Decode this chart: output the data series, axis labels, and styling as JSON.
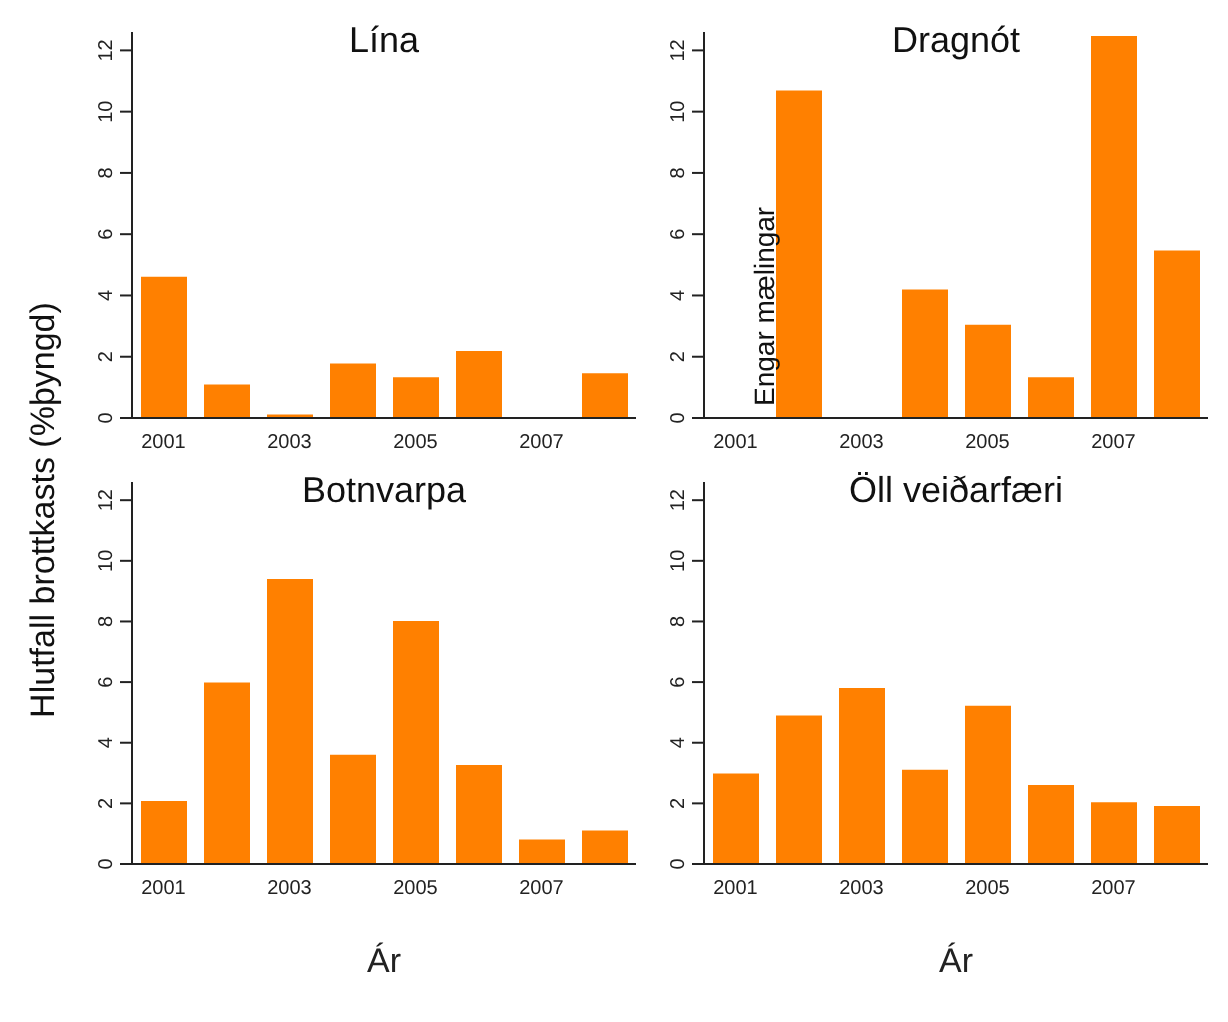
{
  "chart_data": [
    {
      "type": "bar",
      "title": "Lína",
      "ylabel": "Hlutfall brottkasts (%þyngd)",
      "categories": [
        "2001",
        null,
        "2003",
        null,
        "2005",
        null,
        "2007",
        null
      ],
      "values": [
        4.64,
        1.13,
        0.15,
        1.81,
        1.36,
        2.22,
        null,
        1.49
      ],
      "color": "#ff8000",
      "ylim": [
        0,
        12.6
      ],
      "yticks": [
        0,
        2,
        4,
        6,
        8,
        10,
        12
      ],
      "grid": false,
      "legend": false
    },
    {
      "type": "bar",
      "title": "Dragnót",
      "categories": [
        "2001",
        null,
        "2003",
        null,
        "2005",
        null,
        "2007",
        null
      ],
      "values": [
        null,
        10.72,
        null,
        4.23,
        3.08,
        1.36,
        12.5,
        5.5
      ],
      "color": "#ff8000",
      "ylim": [
        0,
        12.6
      ],
      "yticks": [
        0,
        2,
        4,
        6,
        8,
        10,
        12
      ],
      "grid": false,
      "legend": false,
      "annotations": [
        "Engar mælingar"
      ]
    },
    {
      "type": "bar",
      "title": "Botnvarpa",
      "xlabel": "Ár",
      "categories": [
        "2001",
        null,
        "2003",
        null,
        "2005",
        null,
        "2007",
        null
      ],
      "values": [
        2.11,
        6.02,
        9.43,
        3.64,
        8.05,
        3.3,
        0.84,
        1.14
      ],
      "color": "#ff8000",
      "ylim": [
        0,
        12.6
      ],
      "yticks": [
        0,
        2,
        4,
        6,
        8,
        10,
        12
      ],
      "grid": false,
      "legend": false
    },
    {
      "type": "bar",
      "title": "Öll veiðarfæri",
      "xlabel": "Ár",
      "categories": [
        "2001",
        null,
        "2003",
        null,
        "2005",
        null,
        "2007",
        null
      ],
      "values": [
        3.02,
        4.93,
        5.84,
        3.14,
        5.25,
        2.64,
        2.07,
        1.95
      ],
      "color": "#ff8000",
      "ylim": [
        0,
        12.6
      ],
      "yticks": [
        0,
        2,
        4,
        6,
        8,
        10,
        12
      ],
      "grid": false,
      "legend": false
    }
  ]
}
